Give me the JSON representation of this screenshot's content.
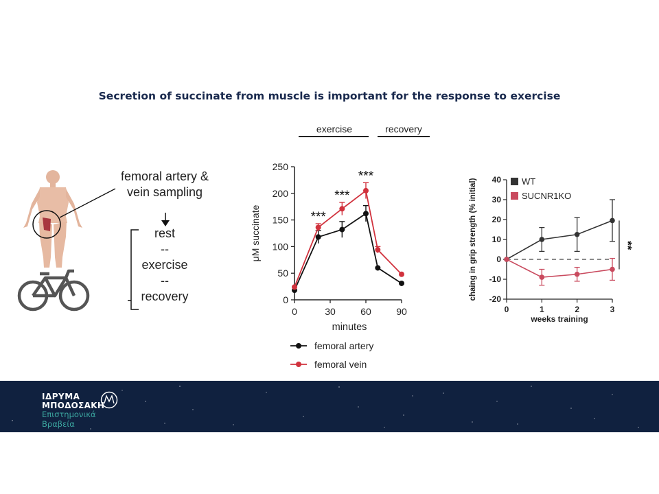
{
  "title": "Secretion of succinate from muscle is important for the response to exercise",
  "phase_labels": {
    "exercise": "exercise",
    "recovery": "recovery"
  },
  "schematic": {
    "sampling_label_line1": "femoral artery &",
    "sampling_label_line2": "vein sampling",
    "protocol": [
      "rest",
      "--",
      "exercise",
      "--",
      "recovery"
    ],
    "icons": [
      "human-body-icon",
      "bicycle-icon",
      "down-arrow-icon"
    ]
  },
  "colors": {
    "black_series": "#111111",
    "red_series": "#d1323d",
    "footer_bg": "#10213f",
    "title": "#1a2a4e",
    "logo_teal": "#3ca7a0"
  },
  "chart_data": [
    {
      "type": "line",
      "xlabel": "minutes",
      "ylabel": "μM succinate",
      "xlim": [
        0,
        90
      ],
      "ylim": [
        0,
        250
      ],
      "xticks": [
        0,
        30,
        60,
        90
      ],
      "yticks": [
        0,
        50,
        100,
        150,
        200,
        250
      ],
      "annotations": [
        "***",
        "***",
        "***"
      ],
      "annotation_x": [
        20,
        40,
        60
      ],
      "legend": [
        "femoral artery",
        "femoral vein"
      ],
      "legend_position": "bottom",
      "series": [
        {
          "name": "femoral artery",
          "color": "#111111",
          "x": [
            0,
            20,
            40,
            60,
            70,
            90
          ],
          "y": [
            18,
            118,
            132,
            162,
            60,
            31
          ],
          "err": [
            0,
            12,
            15,
            15,
            0,
            0
          ]
        },
        {
          "name": "femoral vein",
          "color": "#d1323d",
          "x": [
            0,
            20,
            40,
            60,
            70,
            90
          ],
          "y": [
            24,
            136,
            171,
            205,
            94,
            48
          ],
          "err": [
            0,
            7,
            12,
            15,
            6,
            0
          ]
        }
      ]
    },
    {
      "type": "line",
      "xlabel": "weeks training",
      "ylabel": "chaing in grip strength (% initial)",
      "xlim": [
        0,
        3
      ],
      "ylim": [
        -20,
        40
      ],
      "xticks": [
        0,
        1,
        2,
        3
      ],
      "yticks": [
        -20,
        -10,
        0,
        10,
        20,
        30,
        40
      ],
      "annotations": [
        "**"
      ],
      "reference_line_y": 0,
      "legend": [
        "WT",
        "SUCNR1KO"
      ],
      "legend_position": "top-left",
      "series": [
        {
          "name": "WT",
          "color": "#333333",
          "x": [
            0,
            1,
            2,
            3
          ],
          "y": [
            0,
            10,
            12.5,
            19.5
          ],
          "err": [
            0,
            6,
            8.5,
            10.5
          ]
        },
        {
          "name": "SUCNR1KO",
          "color": "#c94a5e",
          "x": [
            0,
            1,
            2,
            3
          ],
          "y": [
            0,
            -9,
            -7.5,
            -5
          ],
          "err": [
            0,
            4,
            3.5,
            5.5
          ]
        }
      ]
    }
  ],
  "footer": {
    "logo_line1": "ΙΔΡΥΜΑ",
    "logo_line2": "ΜΠΟΔΟΣΑΚΗ",
    "logo_line3": "Επιστημονικά",
    "logo_line4": "Βραβεία",
    "logo_icon": "foundation-monogram-icon"
  }
}
